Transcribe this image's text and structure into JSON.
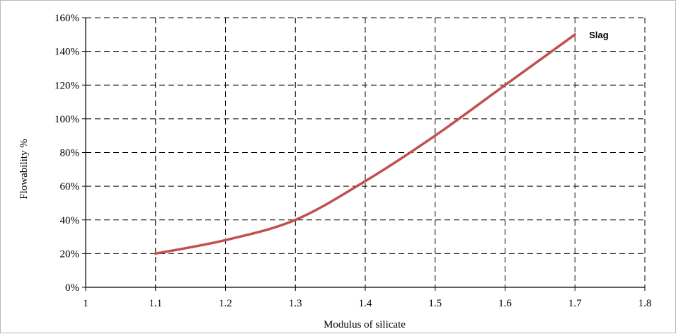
{
  "chart_data": {
    "type": "line",
    "title": "",
    "xlabel": "Modulus of silicate",
    "ylabel": "Flowability %",
    "xlim": [
      1,
      1.8
    ],
    "ylim": [
      0,
      1.6
    ],
    "x_ticks": [
      1,
      1.1,
      1.2,
      1.3,
      1.4,
      1.5,
      1.6,
      1.7,
      1.8
    ],
    "x_tick_labels": [
      "1",
      "1.1",
      "1.2",
      "1.3",
      "1.4",
      "1.5",
      "1.6",
      "1.7",
      "1.8"
    ],
    "y_ticks": [
      0,
      0.2,
      0.4,
      0.6,
      0.8,
      1.0,
      1.2,
      1.4,
      1.6
    ],
    "y_tick_labels": [
      "0%",
      "20%",
      "40%",
      "60%",
      "80%",
      "100%",
      "120%",
      "140%",
      "160%"
    ],
    "grid": true,
    "grid_style": "dashed",
    "series": [
      {
        "name": "Slag",
        "color": "#c0504d",
        "smooth": true,
        "x": [
          1.1,
          1.2,
          1.3,
          1.4,
          1.5,
          1.6,
          1.7
        ],
        "y": [
          0.2,
          0.28,
          0.4,
          0.63,
          0.9,
          1.2,
          1.5
        ]
      }
    ]
  }
}
